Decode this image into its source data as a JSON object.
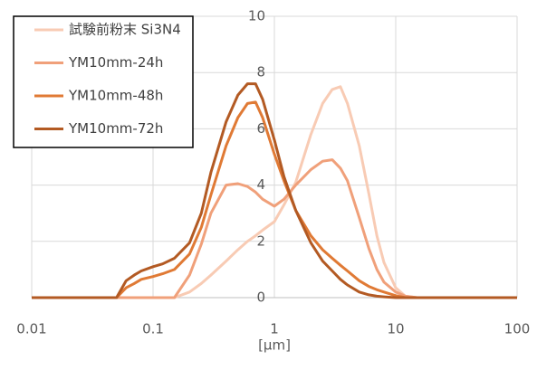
{
  "chart_data": {
    "type": "line",
    "x_label": "[μm]",
    "xscale": "log",
    "grid": true,
    "legend": "upper left",
    "x": [
      0.01,
      0.05,
      0.06,
      0.07,
      0.08,
      0.1,
      0.12,
      0.15,
      0.2,
      0.25,
      0.3,
      0.4,
      0.5,
      0.6,
      0.7,
      0.8,
      1,
      1.2,
      1.5,
      2,
      2.5,
      3,
      3.5,
      4,
      5,
      6,
      7,
      8,
      10,
      12,
      15,
      100
    ],
    "series": [
      {
        "name": "試験前粉末 Si3N4",
        "color": "#f8cbb4",
        "values": [
          0,
          0,
          0,
          0,
          0,
          0,
          0,
          0,
          0.2,
          0.5,
          0.8,
          1.3,
          1.7,
          2.0,
          2.2,
          2.4,
          2.7,
          3.3,
          4.1,
          5.8,
          6.9,
          7.4,
          7.5,
          6.9,
          5.4,
          3.7,
          2.2,
          1.25,
          0.35,
          0.05,
          0,
          0
        ]
      },
      {
        "name": "YM10mm-24h",
        "color": "#f0a07a",
        "values": [
          0,
          0,
          0,
          0,
          0,
          0,
          0,
          0,
          0.8,
          1.9,
          3.0,
          4.0,
          4.05,
          3.95,
          3.75,
          3.5,
          3.25,
          3.5,
          4.0,
          4.55,
          4.85,
          4.9,
          4.6,
          4.15,
          2.85,
          1.75,
          1.0,
          0.55,
          0.2,
          0.05,
          0,
          0
        ]
      },
      {
        "name": "YM10mm-48h",
        "color": "#e07a35",
        "values": [
          0,
          0,
          0.35,
          0.5,
          0.65,
          0.75,
          0.85,
          1.0,
          1.55,
          2.5,
          3.65,
          5.4,
          6.4,
          6.9,
          6.95,
          6.4,
          5.1,
          4.15,
          3.1,
          2.2,
          1.7,
          1.4,
          1.15,
          0.95,
          0.6,
          0.4,
          0.28,
          0.2,
          0.07,
          0,
          0,
          0
        ]
      },
      {
        "name": "YM10mm-72h",
        "color": "#b35a23",
        "values": [
          0,
          0,
          0.6,
          0.8,
          0.95,
          1.1,
          1.2,
          1.4,
          1.95,
          3.0,
          4.45,
          6.25,
          7.2,
          7.6,
          7.6,
          7.05,
          5.6,
          4.3,
          3.1,
          1.95,
          1.3,
          0.95,
          0.65,
          0.45,
          0.2,
          0.1,
          0.05,
          0.03,
          0,
          0,
          0,
          0
        ]
      }
    ],
    "xlim": [
      0.01,
      100
    ],
    "xticks": [
      0.01,
      0.1,
      1,
      10,
      100
    ],
    "ylim": [
      0,
      10
    ],
    "yticks": [
      0,
      2,
      4,
      6,
      8,
      10
    ]
  }
}
